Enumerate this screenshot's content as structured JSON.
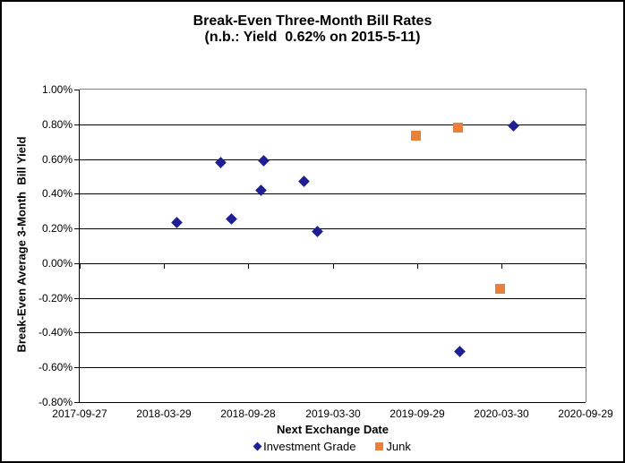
{
  "chart": {
    "title_line1": "Break-Even Three-Month Bill Rates",
    "title_line2": "(n.b.: Yield  0.62% on 2015-5-11)"
  },
  "chart_data": {
    "type": "scatter",
    "title": "Break-Even Three-Month Bill Rates",
    "subtitle": "(n.b.: Yield 0.62% on 2015-5-11)",
    "xlabel": "Next Exchange Date",
    "ylabel": "Break-Even Average 3-Month  Bill Yield",
    "grid": "horizontal",
    "legend_position": "bottom",
    "x_axis": {
      "min": "2017-09-27",
      "max": "2020-09-29",
      "tick_labels": [
        "2017-09-27",
        "2018-03-29",
        "2018-09-28",
        "2019-03-30",
        "2019-09-29",
        "2020-03-30",
        "2020-09-29"
      ]
    },
    "y_axis": {
      "min": -0.8,
      "max": 1.0,
      "step": 0.2,
      "unit": "%",
      "tick_labels": [
        "1.00%",
        "0.80%",
        "0.60%",
        "0.40%",
        "0.20%",
        "0.00%",
        "-0.20%",
        "-0.40%",
        "-0.60%",
        "-0.80%"
      ],
      "axis_crosses_at": 0.0
    },
    "series": [
      {
        "name": "Investment Grade",
        "marker": "diamond",
        "color": "#1E1E96",
        "points": [
          {
            "date": "2018-04-25",
            "value": 0.235
          },
          {
            "date": "2018-07-31",
            "value": 0.58
          },
          {
            "date": "2018-08-23",
            "value": 0.255
          },
          {
            "date": "2018-10-25",
            "value": 0.42
          },
          {
            "date": "2018-11-01",
            "value": 0.59
          },
          {
            "date": "2019-01-27",
            "value": 0.47
          },
          {
            "date": "2019-02-25",
            "value": 0.18
          },
          {
            "date": "2019-12-31",
            "value": -0.51
          },
          {
            "date": "2020-04-25",
            "value": 0.79
          }
        ]
      },
      {
        "name": "Junk",
        "marker": "square",
        "color": "#E8813A",
        "points": [
          {
            "date": "2019-09-27",
            "value": 0.735
          },
          {
            "date": "2019-12-28",
            "value": 0.78
          },
          {
            "date": "2020-03-27",
            "value": -0.145
          }
        ]
      }
    ],
    "colors": {
      "gridline": "#000000",
      "plot_border": "#808080",
      "text": "#000000",
      "background": "#ffffff"
    }
  }
}
